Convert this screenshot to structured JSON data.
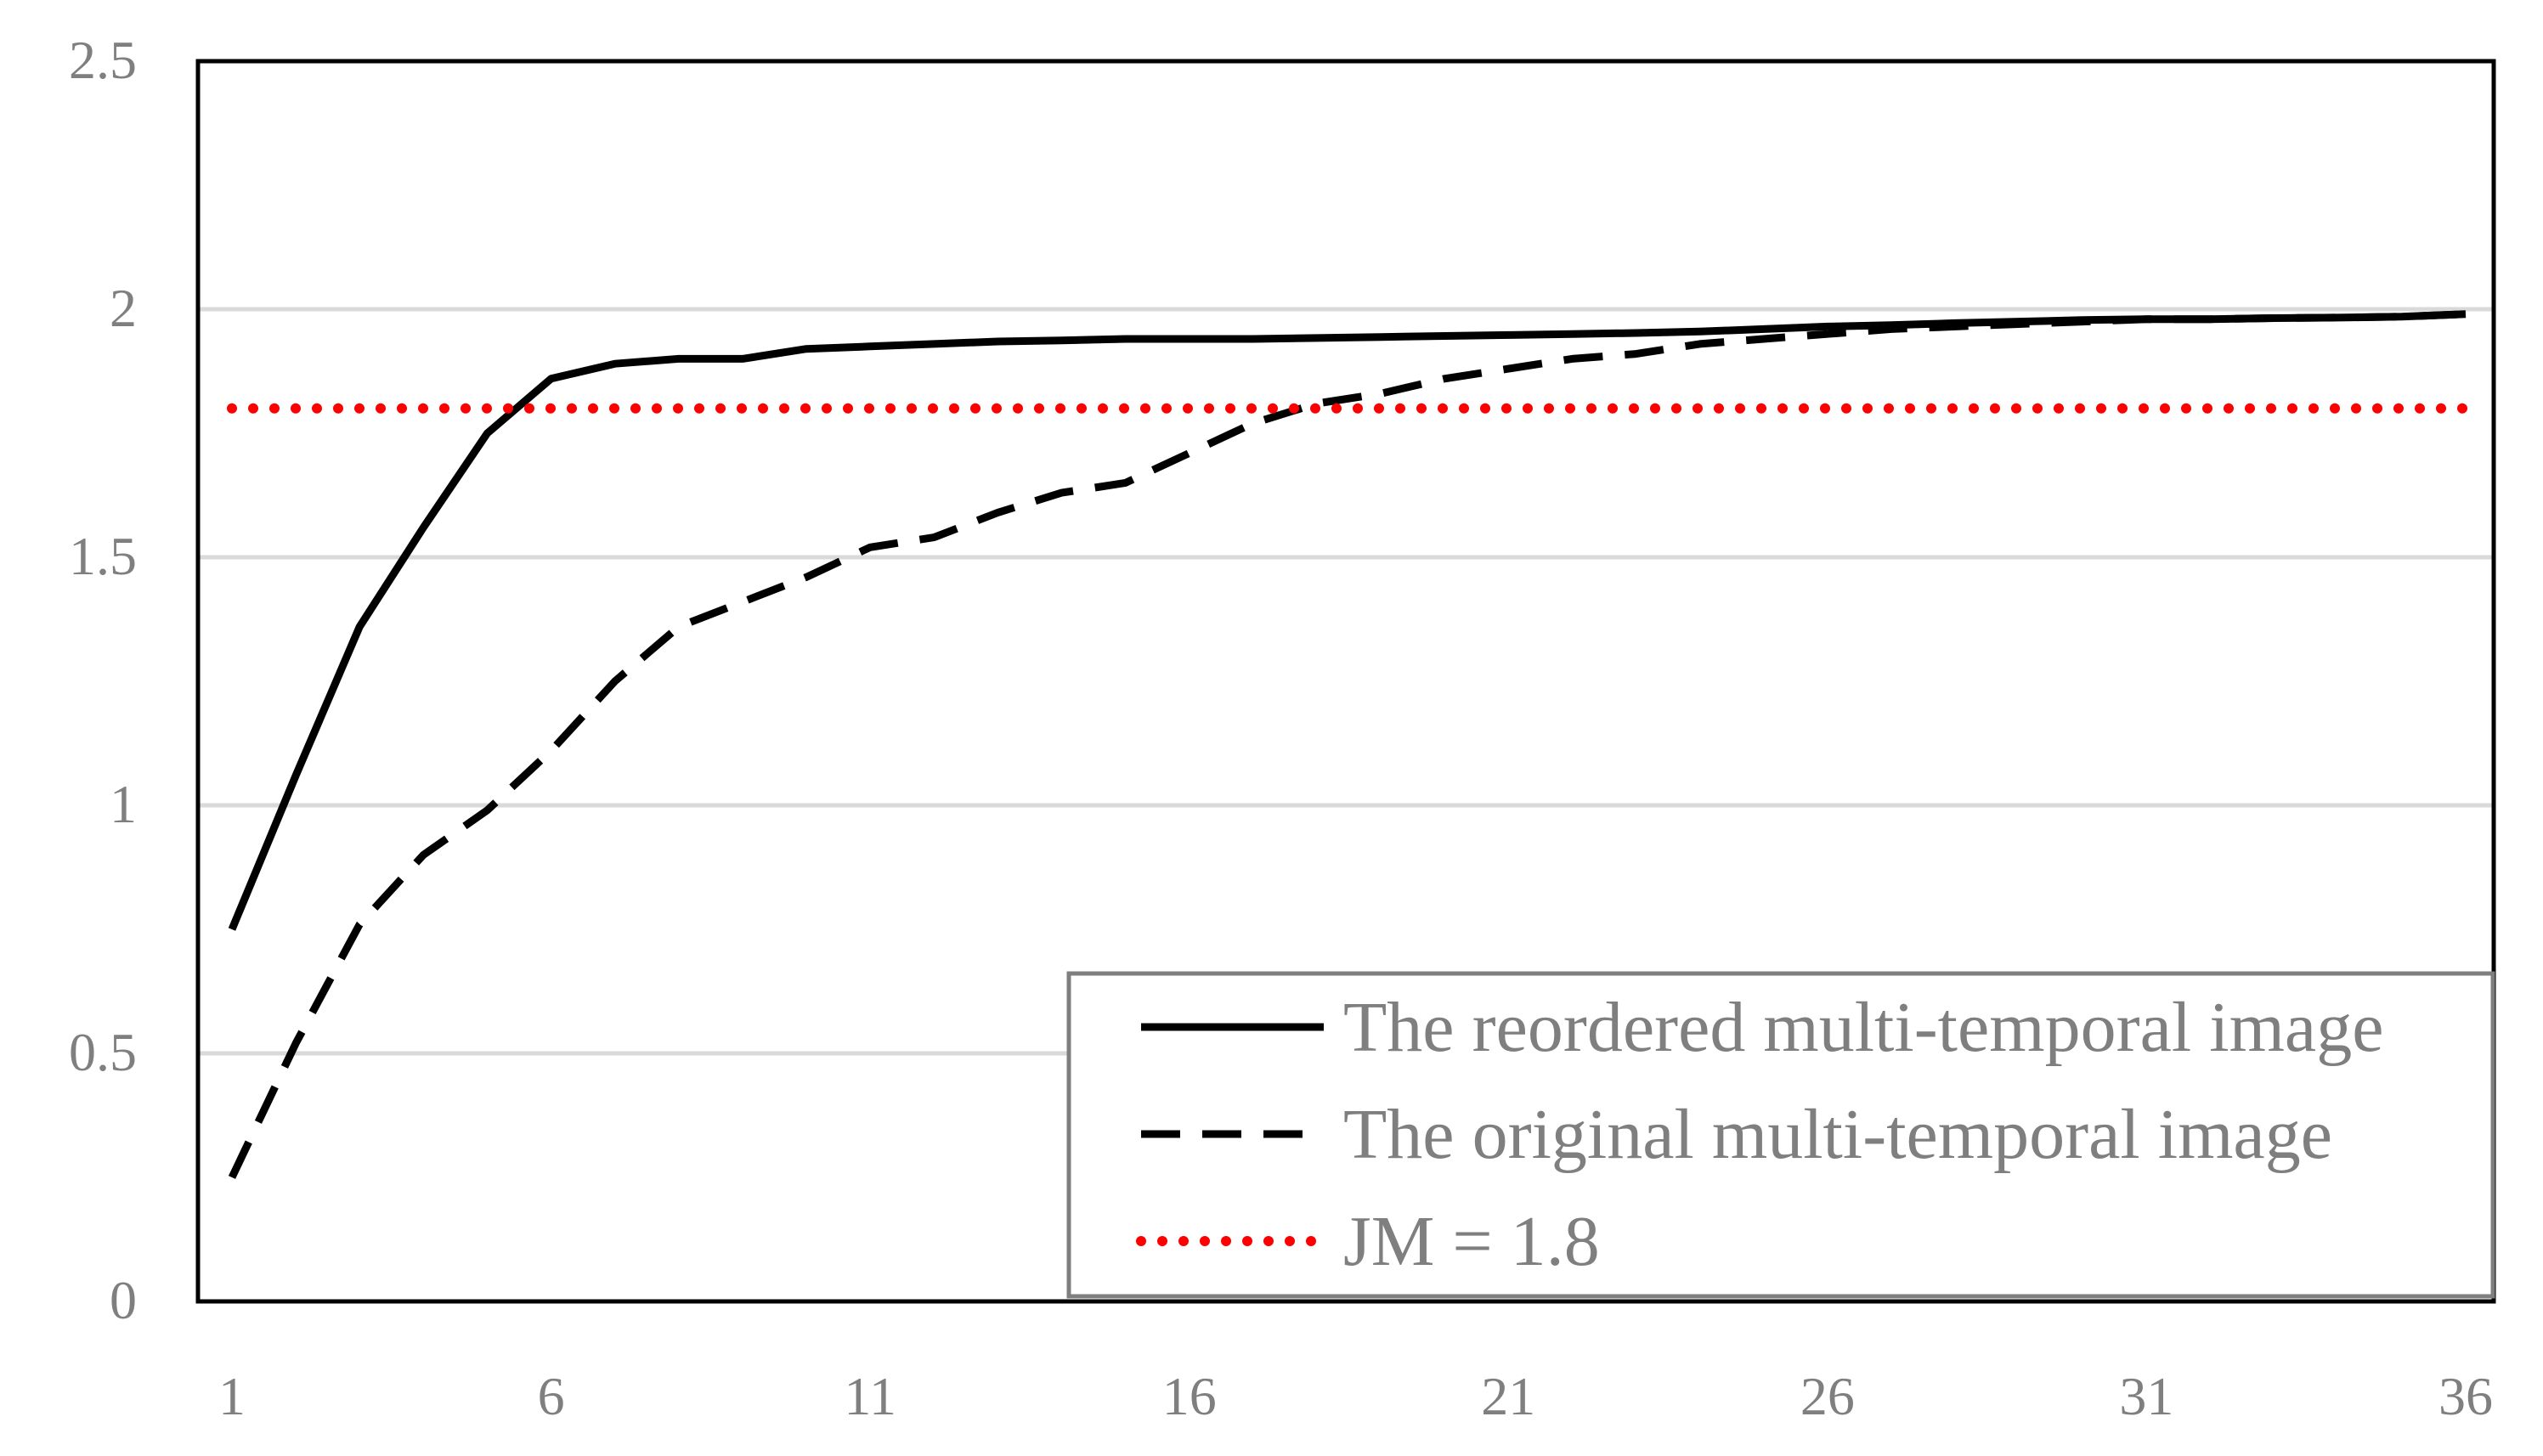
{
  "chart_data": {
    "type": "line",
    "title": "",
    "xlabel": "",
    "ylabel": "",
    "x": [
      1,
      2,
      3,
      4,
      5,
      6,
      7,
      8,
      9,
      10,
      11,
      12,
      13,
      14,
      15,
      16,
      17,
      18,
      19,
      20,
      21,
      22,
      23,
      24,
      25,
      26,
      27,
      28,
      29,
      30,
      31,
      32,
      33,
      34,
      35,
      36
    ],
    "x_tick_labels": [
      "1",
      "6",
      "11",
      "16",
      "21",
      "26",
      "31",
      "36"
    ],
    "y_tick_labels": [
      "0",
      "0.5",
      "1",
      "1.5",
      "2",
      "2.5"
    ],
    "xlim": [
      1,
      36
    ],
    "ylim": [
      0,
      2.5
    ],
    "y_gridlines": true,
    "legend_position": "bottom-right",
    "series": [
      {
        "name": "The reordered multi-temporal image",
        "style": "solid",
        "color": "#000000",
        "values": [
          0.75,
          1.06,
          1.36,
          1.56,
          1.75,
          1.86,
          1.89,
          1.9,
          1.9,
          1.92,
          1.925,
          1.93,
          1.935,
          1.937,
          1.94,
          1.94,
          1.94,
          1.942,
          1.944,
          1.946,
          1.948,
          1.95,
          1.952,
          1.955,
          1.96,
          1.965,
          1.968,
          1.972,
          1.975,
          1.978,
          1.98,
          1.98,
          1.982,
          1.983,
          1.985,
          1.99
        ]
      },
      {
        "name": "The original multi-temporal image",
        "style": "dashed",
        "color": "#000000",
        "values": [
          0.25,
          0.52,
          0.76,
          0.9,
          0.99,
          1.11,
          1.25,
          1.36,
          1.41,
          1.46,
          1.52,
          1.54,
          1.59,
          1.63,
          1.65,
          1.71,
          1.77,
          1.81,
          1.83,
          1.86,
          1.88,
          1.9,
          1.91,
          1.93,
          1.94,
          1.95,
          1.96,
          1.965,
          1.97,
          1.975,
          1.98,
          1.98,
          1.982,
          1.983,
          1.985,
          1.99
        ]
      },
      {
        "name": "JM = 1.8",
        "style": "dotted",
        "color": "#ff0000",
        "values": [
          1.8,
          1.8,
          1.8,
          1.8,
          1.8,
          1.8,
          1.8,
          1.8,
          1.8,
          1.8,
          1.8,
          1.8,
          1.8,
          1.8,
          1.8,
          1.8,
          1.8,
          1.8,
          1.8,
          1.8,
          1.8,
          1.8,
          1.8,
          1.8,
          1.8,
          1.8,
          1.8,
          1.8,
          1.8,
          1.8,
          1.8,
          1.8,
          1.8,
          1.8,
          1.8,
          1.8
        ]
      }
    ]
  }
}
